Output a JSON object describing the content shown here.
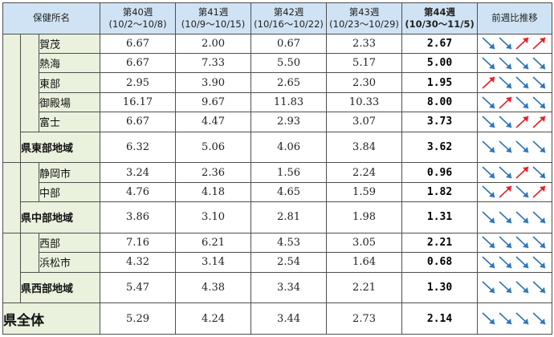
{
  "header": {
    "name_col": "保健所名",
    "weeks": [
      {
        "label": "第40週",
        "range": "(10/2～10/8)"
      },
      {
        "label": "第41週",
        "range": "(10/9～10/15)"
      },
      {
        "label": "第42週",
        "range": "(10/16～10/22)"
      },
      {
        "label": "第43週",
        "range": "(10/23～10/29)"
      },
      {
        "label": "第44週",
        "range": "(10/30～11/5)"
      }
    ],
    "trend_col": "前週比推移"
  },
  "trend_colors": {
    "down": "#2e75b6",
    "up": "#e8202a"
  },
  "rows": [
    {
      "name": "賀茂",
      "values": [
        "6.67",
        "2.00",
        "0.67",
        "2.33",
        "2.67"
      ],
      "trend": [
        "down",
        "down",
        "up",
        "up"
      ]
    },
    {
      "name": "熱海",
      "values": [
        "6.67",
        "7.33",
        "5.50",
        "5.17",
        "5.00"
      ],
      "trend": [
        "down",
        "down",
        "down",
        "down"
      ]
    },
    {
      "name": "東部",
      "values": [
        "2.95",
        "3.90",
        "2.65",
        "2.30",
        "1.95"
      ],
      "trend": [
        "up",
        "down",
        "down",
        "down"
      ]
    },
    {
      "name": "御殿場",
      "values": [
        "16.17",
        "9.67",
        "11.83",
        "10.33",
        "8.00"
      ],
      "trend": [
        "down",
        "up",
        "down",
        "down"
      ]
    },
    {
      "name": "富士",
      "values": [
        "6.67",
        "4.47",
        "2.93",
        "3.07",
        "3.73"
      ],
      "trend": [
        "down",
        "down",
        "up",
        "up"
      ]
    },
    {
      "name": "県東部地域",
      "values": [
        "6.32",
        "5.06",
        "4.06",
        "3.84",
        "3.62"
      ],
      "trend": [
        "down",
        "down",
        "down",
        "down"
      ]
    },
    {
      "name": "静岡市",
      "values": [
        "3.24",
        "2.36",
        "1.56",
        "2.24",
        "0.96"
      ],
      "trend": [
        "down",
        "down",
        "up",
        "down"
      ]
    },
    {
      "name": "中部",
      "values": [
        "4.76",
        "4.18",
        "4.65",
        "1.59",
        "1.82"
      ],
      "trend": [
        "down",
        "up",
        "down",
        "up"
      ]
    },
    {
      "name": "県中部地域",
      "values": [
        "3.86",
        "3.10",
        "2.81",
        "1.98",
        "1.31"
      ],
      "trend": [
        "down",
        "down",
        "down",
        "down"
      ]
    },
    {
      "name": "西部",
      "values": [
        "7.16",
        "6.21",
        "4.53",
        "3.05",
        "2.21"
      ],
      "trend": [
        "down",
        "down",
        "down",
        "down"
      ]
    },
    {
      "name": "浜松市",
      "values": [
        "4.32",
        "3.14",
        "2.54",
        "1.64",
        "0.68"
      ],
      "trend": [
        "down",
        "down",
        "down",
        "down"
      ]
    },
    {
      "name": "県西部地域",
      "values": [
        "5.47",
        "4.38",
        "3.34",
        "2.21",
        "1.30"
      ],
      "trend": [
        "down",
        "down",
        "down",
        "down"
      ]
    },
    {
      "name": "県全体",
      "values": [
        "5.29",
        "4.24",
        "3.44",
        "2.73",
        "2.14"
      ],
      "trend": [
        "down",
        "down",
        "down",
        "down"
      ]
    }
  ]
}
